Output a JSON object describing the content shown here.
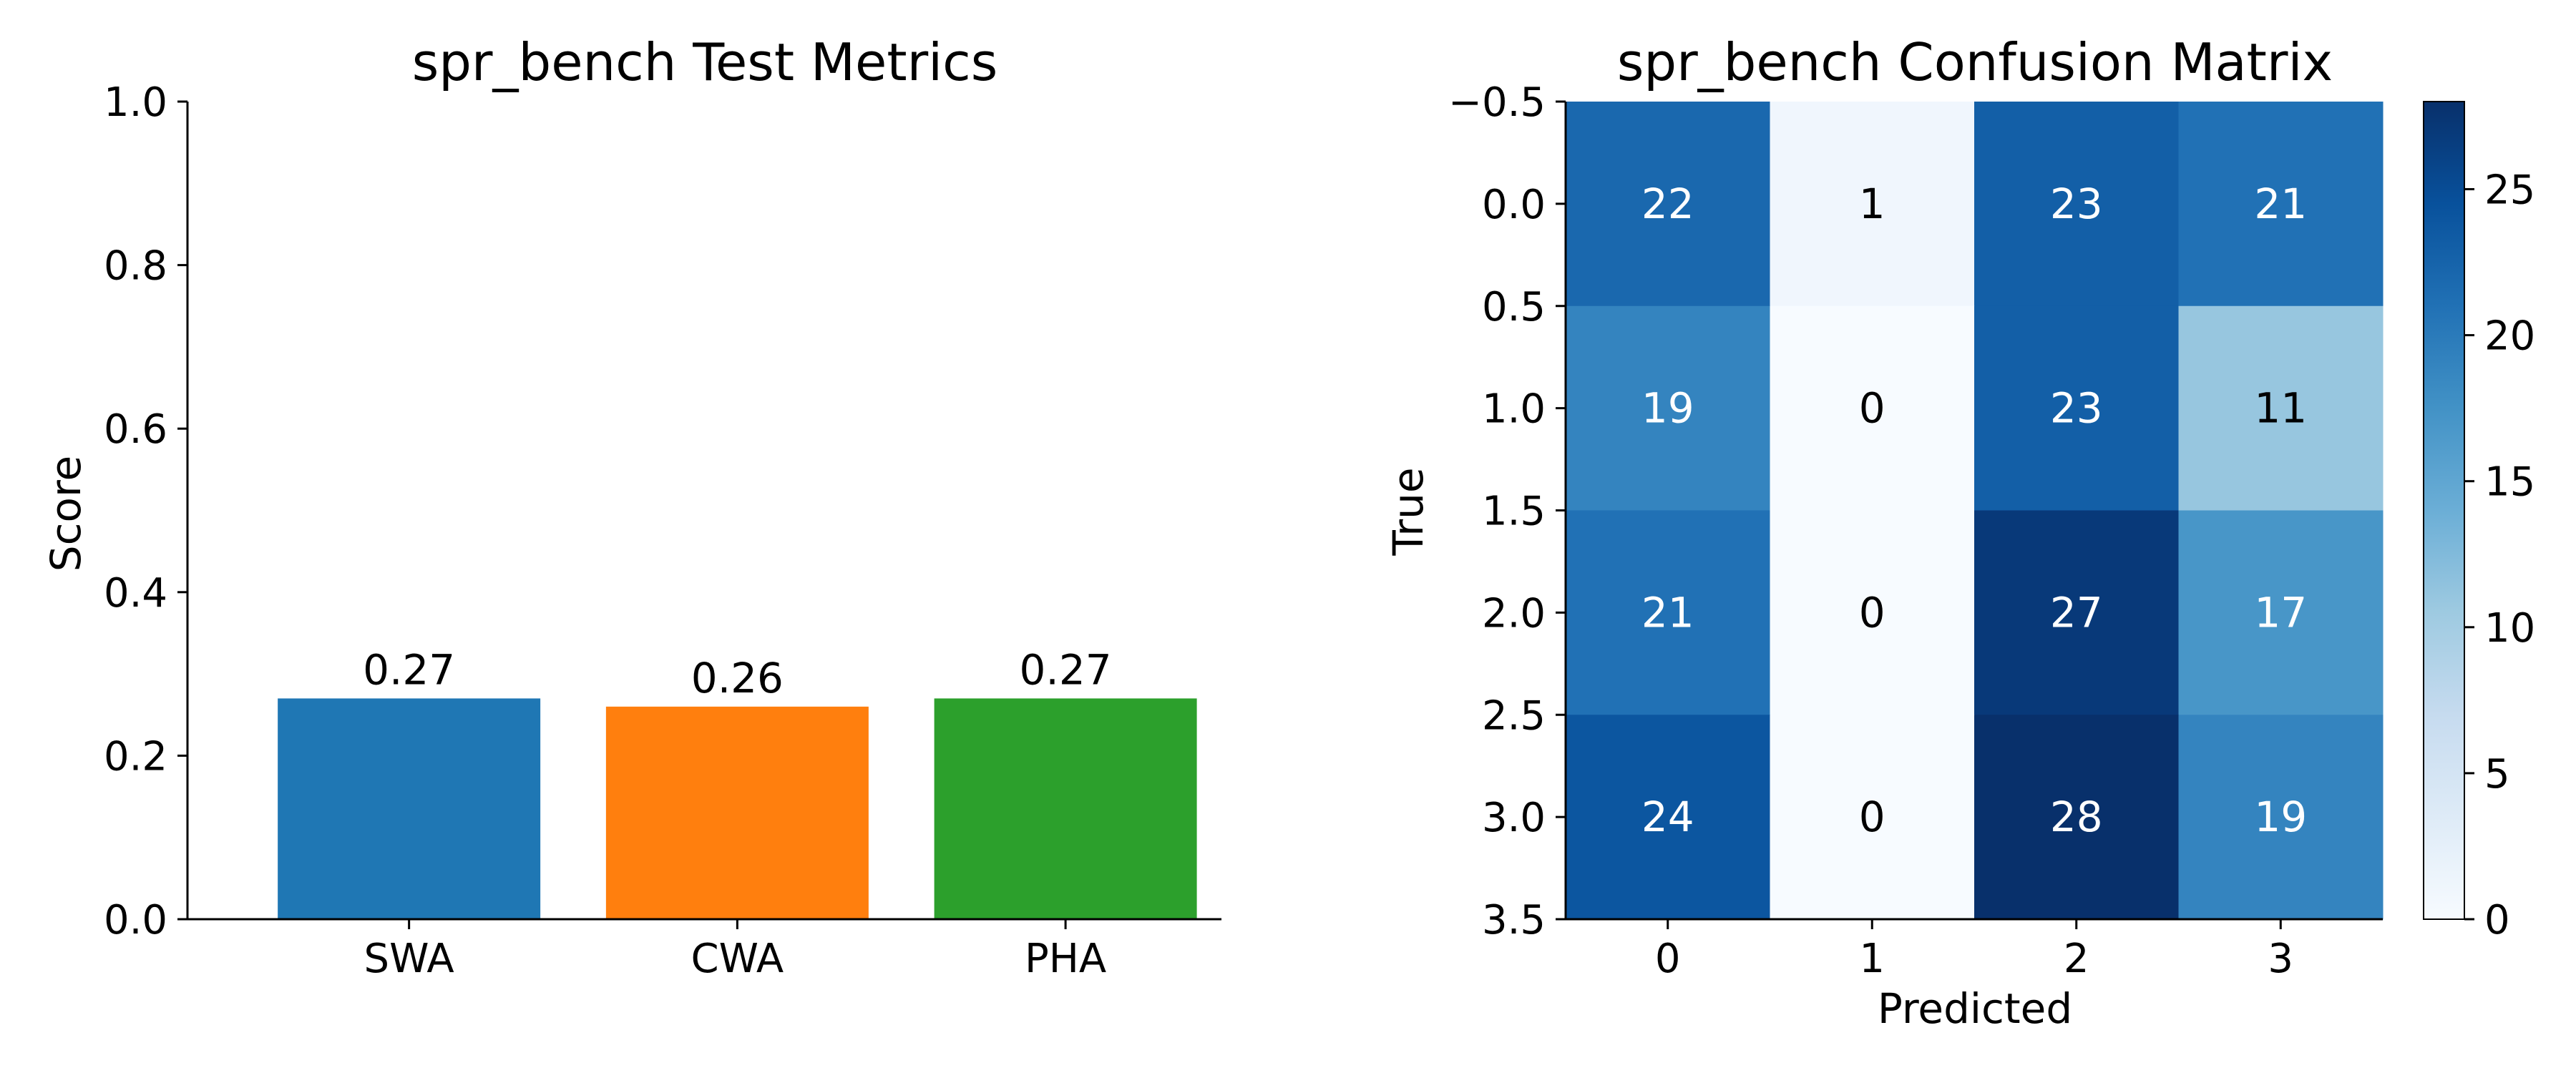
{
  "chart_data": [
    {
      "type": "bar",
      "title": "spr_bench Test Metrics",
      "xlabel": "",
      "ylabel": "Score",
      "categories": [
        "SWA",
        "CWA",
        "PHA"
      ],
      "values": [
        0.27,
        0.26,
        0.27
      ],
      "value_labels": [
        "0.27",
        "0.26",
        "0.27"
      ],
      "colors": [
        "#1f77b4",
        "#ff7f0e",
        "#2ca02c"
      ],
      "ylim": [
        0,
        1.0
      ],
      "yticks": [
        0.0,
        0.2,
        0.4,
        0.6,
        0.8,
        1.0
      ],
      "ytick_labels": [
        "0.0",
        "0.2",
        "0.4",
        "0.6",
        "0.8",
        "1.0"
      ],
      "grid": false,
      "spines": "left-bottom"
    },
    {
      "type": "heatmap",
      "title": "spr_bench Confusion Matrix",
      "xlabel": "Predicted",
      "ylabel": "True",
      "x_ticks": [
        "0",
        "1",
        "2",
        "3"
      ],
      "y_ticks": [
        "−0.5",
        "0.0",
        "0.5",
        "1.0",
        "1.5",
        "2.0",
        "2.5",
        "3.0",
        "3.5"
      ],
      "matrix": [
        [
          22,
          1,
          23,
          21
        ],
        [
          19,
          0,
          23,
          11
        ],
        [
          21,
          0,
          27,
          17
        ],
        [
          24,
          0,
          28,
          19
        ]
      ],
      "colormap": "Blues",
      "vmin": 0,
      "vmax": 28,
      "colorbar_ticks": [
        "0",
        "5",
        "10",
        "15",
        "20",
        "25"
      ],
      "colorbar_values": [
        0,
        5,
        10,
        15,
        20,
        25
      ]
    }
  ]
}
